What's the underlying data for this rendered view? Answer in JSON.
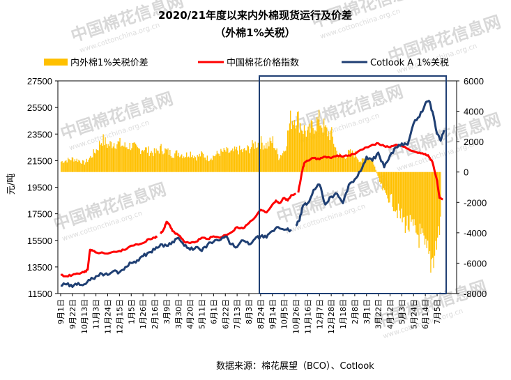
{
  "chart_data": {
    "type": "bar+line",
    "title": "2020/21年度以来内外棉现货运行及价差",
    "subtitle": "（外棉1%关税）",
    "ylabel": "元/吨",
    "source": "数据来源：棉花展望（BCO）、Cotlook",
    "watermark": "中国棉花信息网",
    "watermark_url": "www.cottonchina.org.cn",
    "y_left": {
      "min": 11500,
      "max": 27500,
      "ticks": [
        11500,
        13500,
        15500,
        17500,
        19500,
        21500,
        23500,
        25500,
        27500
      ]
    },
    "y_right": {
      "min": -8000,
      "max": 6000,
      "ticks": [
        -8000,
        -6000,
        -4000,
        -2000,
        0,
        2000,
        4000,
        6000
      ]
    },
    "x_labels": [
      "9月1日",
      "9月22日",
      "10月13日",
      "11月3日",
      "11月24日",
      "12月15日",
      "1月5日",
      "1月26日",
      "2月16日",
      "3月9日",
      "3月30日",
      "4月20日",
      "5月11日",
      "6月1日",
      "6月22日",
      "7月13日",
      "8月3日",
      "8月24日",
      "9月14日",
      "10月5日",
      "10月26日",
      "11月16日",
      "12月7日",
      "12月28日",
      "1月18日",
      "2月8日",
      "3月1日",
      "3月22日",
      "4月12日",
      "5月3日",
      "5月24日",
      "6月14日",
      "7月5日"
    ],
    "series": [
      {
        "name": "内外棉1%关税价差",
        "type": "bar",
        "axis": "right",
        "color": "#FFC000",
        "points": [
          [
            0,
            700
          ],
          [
            1,
            900
          ],
          [
            1.5,
            800
          ],
          [
            2,
            600
          ],
          [
            2.5,
            1000
          ],
          [
            3,
            1500
          ],
          [
            3.5,
            2200
          ],
          [
            4,
            1800
          ],
          [
            4.5,
            2000
          ],
          [
            5,
            1900
          ],
          [
            5.5,
            1700
          ],
          [
            6,
            1800
          ],
          [
            6.5,
            1500
          ],
          [
            7,
            1600
          ],
          [
            7.5,
            1400
          ],
          [
            8,
            1300
          ],
          [
            8.5,
            1600
          ],
          [
            9,
            1400
          ],
          [
            9.5,
            1200
          ],
          [
            10,
            1300
          ],
          [
            10.5,
            1100
          ],
          [
            11,
            1300
          ],
          [
            11.5,
            1000
          ],
          [
            12,
            1200
          ],
          [
            12.5,
            900
          ],
          [
            13,
            1100
          ],
          [
            13.5,
            1300
          ],
          [
            14,
            1400
          ],
          [
            14.5,
            1300
          ],
          [
            15,
            1500
          ],
          [
            15.5,
            1400
          ],
          [
            16,
            1600
          ],
          [
            16.5,
            1900
          ],
          [
            17,
            2000
          ],
          [
            17.5,
            1800
          ],
          [
            18,
            2100
          ],
          [
            18.5,
            1000
          ],
          [
            19,
            1500
          ],
          [
            19.5,
            3500
          ],
          [
            20,
            3800
          ],
          [
            20.5,
            3000
          ],
          [
            21,
            2600
          ],
          [
            21.5,
            3200
          ],
          [
            22,
            3500
          ],
          [
            22.5,
            2800
          ],
          [
            23,
            2500
          ],
          [
            23.5,
            1200
          ],
          [
            24,
            1000
          ],
          [
            24.5,
            1300
          ],
          [
            25,
            1200
          ],
          [
            25.5,
            700
          ],
          [
            26,
            1000
          ],
          [
            26.5,
            800
          ],
          [
            27,
            -500
          ],
          [
            27.5,
            -1500
          ],
          [
            28,
            -1800
          ],
          [
            28.5,
            -2500
          ],
          [
            29,
            -3200
          ],
          [
            29.5,
            -3600
          ],
          [
            30,
            -4000
          ],
          [
            30.5,
            -4300
          ],
          [
            31,
            -5500
          ],
          [
            31.5,
            -6000
          ],
          [
            32,
            -4500
          ],
          [
            32.3,
            -3200
          ]
        ]
      },
      {
        "name": "中国棉花价格指数",
        "type": "line",
        "axis": "left",
        "color": "#FF0000",
        "segments": [
          [
            [
              0,
              12900
            ],
            [
              0.5,
              12800
            ],
            [
              1,
              12900
            ],
            [
              1.5,
              13000
            ],
            [
              2,
              13100
            ],
            [
              2.3,
              13300
            ],
            [
              2.5,
              14800
            ],
            [
              2.8,
              14700
            ],
            [
              3,
              14600
            ],
            [
              4,
              14500
            ],
            [
              5,
              14700
            ],
            [
              5.5,
              14800
            ],
            [
              6,
              15100
            ],
            [
              6.5,
              15200
            ],
            [
              7,
              15300
            ],
            [
              7.5,
              15600
            ],
            [
              8,
              15700
            ],
            [
              8.2,
              15800
            ]
          ],
          [
            [
              8.5,
              16000
            ],
            [
              8.8,
              16400
            ],
            [
              9,
              16900
            ],
            [
              9.3,
              16600
            ],
            [
              9.5,
              16200
            ],
            [
              10,
              15900
            ],
            [
              10.5,
              15400
            ],
            [
              11,
              15300
            ],
            [
              11.5,
              15400
            ],
            [
              12,
              15700
            ],
            [
              12.5,
              15600
            ],
            [
              13,
              15800
            ],
            [
              13.5,
              15700
            ],
            [
              14,
              15900
            ],
            [
              14.5,
              16100
            ],
            [
              15,
              16500
            ],
            [
              15.5,
              16400
            ],
            [
              16,
              16800
            ],
            [
              16.5,
              17200
            ],
            [
              17,
              17800
            ],
            [
              17.5,
              17600
            ],
            [
              18,
              18200
            ],
            [
              18.3,
              18500
            ],
            [
              18.6,
              18300
            ],
            [
              19,
              18700
            ],
            [
              19.3,
              18500
            ],
            [
              19.6,
              18900
            ],
            [
              20,
              19000
            ]
          ],
          [
            [
              20.2,
              19100
            ],
            [
              20.5,
              20600
            ],
            [
              20.7,
              21300
            ],
            [
              21,
              21500
            ],
            [
              21.5,
              21700
            ],
            [
              22,
              21600
            ],
            [
              22.5,
              21800
            ],
            [
              23,
              21700
            ],
            [
              23.5,
              21900
            ],
            [
              24,
              21800
            ],
            [
              24.5,
              21900
            ],
            [
              25,
              22000
            ],
            [
              25.5,
              22300
            ],
            [
              26,
              22500
            ],
            [
              26.5,
              22700
            ],
            [
              27,
              22800
            ],
            [
              27.5,
              22600
            ],
            [
              28,
              22500
            ],
            [
              28.5,
              22700
            ],
            [
              29,
              22600
            ],
            [
              29.5,
              22400
            ],
            [
              30,
              22200
            ],
            [
              30.5,
              22100
            ],
            [
              31,
              22000
            ],
            [
              31.3,
              21800
            ],
            [
              31.6,
              21400
            ],
            [
              32,
              20000
            ],
            [
              32.2,
              18700
            ],
            [
              32.5,
              18600
            ]
          ]
        ]
      },
      {
        "name": "Cotlook A 1%关税",
        "type": "line",
        "axis": "left",
        "color": "#1F3F73",
        "segments": [
          [
            [
              0,
              12100
            ],
            [
              0.5,
              12200
            ],
            [
              1,
              12000
            ],
            [
              1.5,
              12300
            ],
            [
              2,
              12200
            ],
            [
              2.5,
              12500
            ],
            [
              3,
              12800
            ],
            [
              3.5,
              13000
            ],
            [
              4,
              12900
            ],
            [
              4.5,
              13200
            ],
            [
              5,
              13100
            ],
            [
              5.5,
              13500
            ],
            [
              6,
              13800
            ],
            [
              6.5,
              14000
            ],
            [
              7,
              14300
            ],
            [
              7.5,
              14600
            ],
            [
              8,
              14800
            ],
            [
              8.5,
              15200
            ],
            [
              9,
              15100
            ],
            [
              9.5,
              15400
            ],
            [
              10,
              15700
            ],
            [
              10.5,
              15100
            ],
            [
              11,
              14800
            ],
            [
              11.5,
              15000
            ],
            [
              12,
              14700
            ],
            [
              12.5,
              15200
            ],
            [
              13,
              15400
            ],
            [
              13.5,
              15500
            ],
            [
              14,
              15800
            ],
            [
              14.5,
              15200
            ],
            [
              15,
              15000
            ],
            [
              15.5,
              15500
            ],
            [
              16,
              15200
            ],
            [
              16.5,
              15600
            ],
            [
              17,
              15800
            ],
            [
              17.5,
              15700
            ],
            [
              18,
              16200
            ],
            [
              18.5,
              16500
            ],
            [
              19,
              16300
            ],
            [
              19.3,
              16400
            ],
            [
              19.6,
              16200
            ]
          ],
          [
            [
              20,
              16600
            ],
            [
              20.3,
              17000
            ],
            [
              20.6,
              18100
            ],
            [
              21,
              18300
            ],
            [
              21.5,
              19300
            ],
            [
              22,
              19700
            ],
            [
              22.5,
              18200
            ],
            [
              23,
              18800
            ],
            [
              23.5,
              19000
            ],
            [
              24,
              18300
            ],
            [
              24.5,
              19700
            ],
            [
              25,
              20100
            ],
            [
              25.5,
              20700
            ],
            [
              26,
              21800
            ],
            [
              26.5,
              21500
            ],
            [
              27,
              22100
            ],
            [
              27.5,
              21000
            ],
            [
              28,
              21900
            ],
            [
              28.5,
              22500
            ],
            [
              29,
              22800
            ],
            [
              29.5,
              22700
            ],
            [
              30,
              24300
            ],
            [
              30.5,
              24800
            ],
            [
              31,
              25800
            ],
            [
              31.3,
              26000
            ],
            [
              31.6,
              25200
            ],
            [
              32,
              23500
            ],
            [
              32.3,
              23000
            ],
            [
              32.6,
              23800
            ]
          ]
        ]
      }
    ]
  }
}
